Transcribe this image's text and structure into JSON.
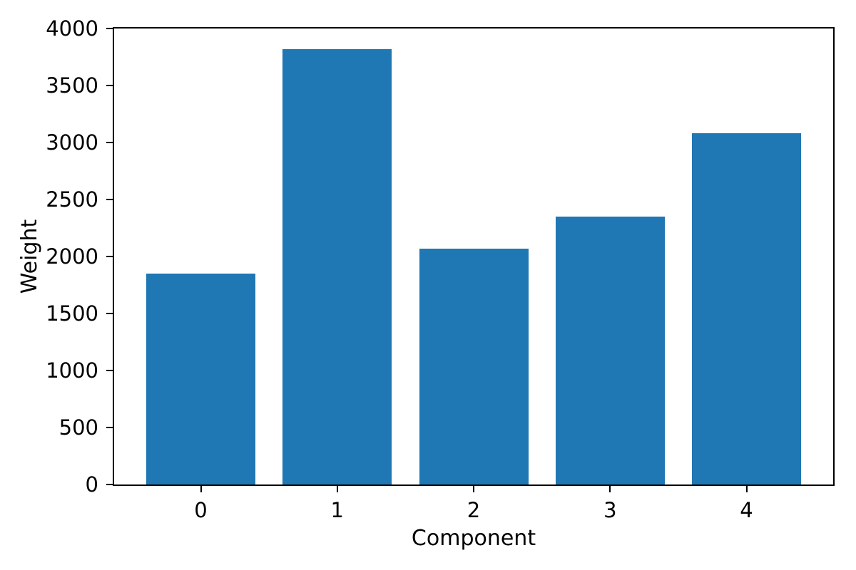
{
  "chart_data": {
    "type": "bar",
    "title": "",
    "xlabel": "Component",
    "ylabel": "Weight",
    "categories": [
      "0",
      "1",
      "2",
      "3",
      "4"
    ],
    "values": [
      1850,
      3820,
      2070,
      2350,
      3080
    ],
    "ylim": [
      0,
      4000
    ],
    "yticks": [
      0,
      500,
      1000,
      1500,
      2000,
      2500,
      3000,
      3500,
      4000
    ],
    "bar_width_fraction": 0.8,
    "grid": false,
    "legend": null,
    "colors": {
      "bar": "#1f77b4",
      "axis": "#000000",
      "text": "#000000",
      "background": "#ffffff"
    }
  }
}
